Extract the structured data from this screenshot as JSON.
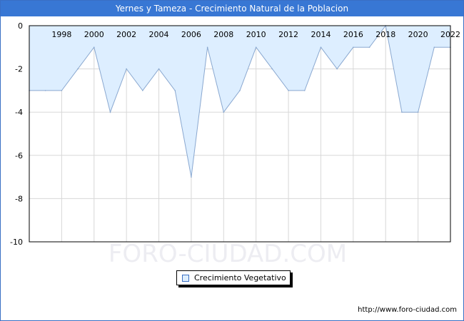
{
  "chart_data": {
    "type": "area",
    "title": "Yernes y Tameza - Crecimiento Natural de la Poblacion",
    "xlabel": "",
    "ylabel": "",
    "x": [
      1996,
      1997,
      1998,
      1999,
      2000,
      2001,
      2002,
      2003,
      2004,
      2005,
      2006,
      2007,
      2008,
      2009,
      2010,
      2011,
      2012,
      2013,
      2014,
      2015,
      2016,
      2017,
      2018,
      2019,
      2020,
      2021,
      2022
    ],
    "x_ticks": [
      1998,
      2000,
      2002,
      2004,
      2006,
      2008,
      2010,
      2012,
      2014,
      2016,
      2018,
      2020,
      2022
    ],
    "y_ticks": [
      0,
      -2,
      -4,
      -6,
      -8,
      -10
    ],
    "ylim": [
      -10,
      0
    ],
    "series": [
      {
        "name": "Crecimiento Vegetativo",
        "values": [
          -3,
          -3,
          -3,
          -2,
          -1,
          -4,
          -2,
          -3,
          -2,
          -3,
          -7,
          -1,
          -4,
          -3,
          -1,
          -2,
          -3,
          -3,
          -1,
          -2,
          -1,
          -1,
          0,
          -4,
          -4,
          -1,
          -1
        ]
      }
    ],
    "grid": true,
    "legend_position": "bottom-center",
    "colors": {
      "fill": "#ddeeff",
      "line": "#8aa8d0",
      "title_bar": "#3877d4",
      "grid": "#d8d8d8"
    }
  },
  "watermark": "FORO-CIUDAD.COM",
  "footer": {
    "url": "http://www.foro-ciudad.com"
  }
}
